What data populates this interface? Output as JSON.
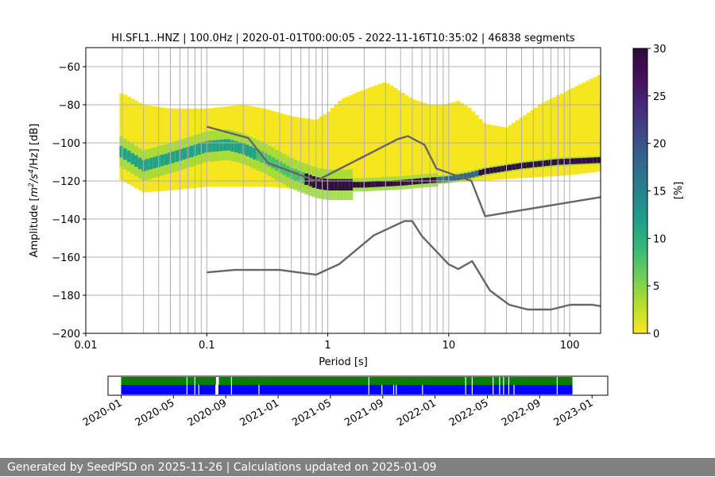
{
  "chart_data": [
    {
      "type": "heatmap",
      "title": "HI.SFL1..HNZ | 100.0Hz | 2020-01-01T00:00:05 - 2022-11-16T10:35:02 | 46838 segments",
      "xlabel": "Period [s]",
      "ylabel_prefix": "Amplitude [",
      "ylabel_m": "m",
      "ylabel_exp1": "2",
      "ylabel_mid": "/s",
      "ylabel_exp2": "4",
      "ylabel_suffix": "/Hz] [dB]",
      "xscale": "log",
      "xlim": [
        0.01,
        180
      ],
      "ylim": [
        -200,
        -50
      ],
      "xtick_values": [
        0.01,
        0.1,
        1,
        10,
        100
      ],
      "xtick_labels": [
        "0.01",
        "0.1",
        "1",
        "10",
        "100"
      ],
      "ytick_values": [
        -200,
        -180,
        -160,
        -140,
        -120,
        -100,
        -80,
        -60
      ],
      "ytick_labels": [
        "−200",
        "−180",
        "−160",
        "−140",
        "−120",
        "−100",
        "−80",
        "−60"
      ],
      "vertical_gridlines": [
        0.02,
        0.03,
        0.04,
        0.05,
        0.06,
        0.07,
        0.08,
        0.09,
        0.1,
        0.2,
        0.3,
        0.4,
        0.5,
        0.6,
        0.7,
        0.8,
        0.9,
        1,
        2,
        3,
        4,
        5,
        6,
        7,
        8,
        9,
        10,
        20,
        30,
        40,
        50,
        60,
        70,
        80,
        90,
        100
      ],
      "horizontal_gridlines": [
        -180,
        -160,
        -140,
        -120,
        -100,
        -80,
        -60
      ],
      "psd_period_range": [
        0.019,
        180
      ],
      "psd_envelope_top": [
        [
          0.019,
          -74
        ],
        [
          0.02,
          -74
        ],
        [
          0.03,
          -80
        ],
        [
          0.05,
          -82
        ],
        [
          0.1,
          -82
        ],
        [
          0.2,
          -80
        ],
        [
          0.3,
          -82
        ],
        [
          0.5,
          -86
        ],
        [
          0.8,
          -88
        ],
        [
          1,
          -84
        ],
        [
          1.3,
          -77
        ],
        [
          2,
          -72
        ],
        [
          3,
          -68
        ],
        [
          5,
          -77
        ],
        [
          7,
          -80
        ],
        [
          9,
          -80
        ],
        [
          12,
          -78
        ],
        [
          15,
          -82
        ],
        [
          20,
          -90
        ],
        [
          30,
          -92
        ],
        [
          60,
          -79
        ],
        [
          100,
          -72
        ],
        [
          180,
          -64
        ]
      ],
      "psd_envelope_bottom": [
        [
          0.019,
          -119
        ],
        [
          0.03,
          -126
        ],
        [
          0.05,
          -125
        ],
        [
          0.1,
          -123
        ],
        [
          0.3,
          -123
        ],
        [
          0.5,
          -124
        ],
        [
          0.8,
          -124
        ],
        [
          1,
          -124
        ],
        [
          3,
          -123
        ],
        [
          10,
          -121
        ],
        [
          30,
          -119
        ],
        [
          100,
          -117
        ],
        [
          180,
          -115
        ]
      ],
      "psd_mode_curve": [
        [
          0.019,
          -104
        ],
        [
          0.03,
          -112
        ],
        [
          0.05,
          -108
        ],
        [
          0.1,
          -102
        ],
        [
          0.15,
          -101
        ],
        [
          0.2,
          -103
        ],
        [
          0.3,
          -108
        ],
        [
          0.5,
          -116
        ],
        [
          0.8,
          -121
        ],
        [
          1,
          -122
        ],
        [
          2,
          -122
        ],
        [
          4,
          -121
        ],
        [
          6,
          -120
        ],
        [
          10,
          -119
        ],
        [
          15,
          -117
        ],
        [
          20,
          -115
        ],
        [
          40,
          -112
        ],
        [
          80,
          -110
        ],
        [
          180,
          -109
        ]
      ],
      "nlnm_model": {
        "period": [
          0.1,
          0.17,
          0.4,
          0.8,
          1.24,
          2.4,
          4.3,
          5,
          6,
          10,
          12,
          15.6,
          21.9,
          31.6,
          45,
          70,
          101,
          154,
          180
        ],
        "db": [
          -168,
          -166.7,
          -166.7,
          -169.2,
          -163.7,
          -148.6,
          -141.1,
          -141.1,
          -149,
          -163.8,
          -166.2,
          -162.1,
          -177.5,
          -185,
          -187.5,
          -187.5,
          -185,
          -185,
          -185.7
        ]
      },
      "nhnm_model": {
        "period": [
          0.1,
          0.22,
          0.32,
          0.8,
          3.8,
          4.6,
          6.3,
          7.9,
          15.4,
          20,
          180
        ],
        "db": [
          -91.5,
          -97.4,
          -110.5,
          -120,
          -98,
          -96.5,
          -101,
          -113.5,
          -120,
          -138.5,
          -128.5
        ]
      },
      "colorbar": {
        "label": "[%]",
        "min": 0,
        "max": 30,
        "ticks": [
          0,
          5,
          10,
          15,
          20,
          25,
          30
        ],
        "tick_labels": [
          "0",
          "5",
          "10",
          "15",
          "20",
          "25",
          "30"
        ],
        "colormap": "viridis_r"
      },
      "colors": {
        "model_line": "#666666",
        "dense_band": "#2f0f42",
        "fill_low": "#f6e620"
      }
    },
    {
      "type": "timeline",
      "xlim_months_since_2020_01": [
        -1.0,
        37.2
      ],
      "xtick_values": [
        0,
        4,
        8,
        12,
        16,
        20,
        24,
        28,
        32,
        36
      ],
      "xtick_labels": [
        "2020-01",
        "2020-05",
        "2020-09",
        "2021-01",
        "2021-05",
        "2021-09",
        "2022-01",
        "2022-05",
        "2022-09",
        "2023-01"
      ],
      "coverage_range_months": [
        0.0,
        34.5
      ],
      "upper_bar_gaps_months": [
        5.0,
        5.6,
        7.3,
        7.4,
        8.4,
        18.9,
        26.3,
        26.8,
        28.4,
        28.9,
        29.2,
        29.6,
        33.3
      ],
      "lower_bar_gaps_months": [
        5.0,
        5.6,
        5.9,
        7.2,
        7.3,
        8.4,
        10.5,
        18.9,
        19.9,
        20.8,
        21.0,
        23.0,
        26.3,
        26.8,
        28.4,
        28.9,
        29.2,
        29.6,
        30.0,
        33.3
      ],
      "colors": {
        "upper_bar": "#008000",
        "lower_bar": "#0000ff"
      }
    }
  ],
  "footer": {
    "text": "Generated by SeedPSD on 2025-11-26 | Calculations updated on 2025-01-09"
  }
}
